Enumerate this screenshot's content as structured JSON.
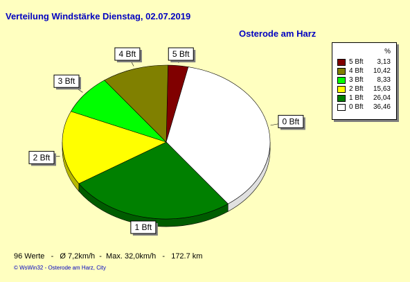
{
  "header": {
    "title": "Verteilung Windstärke  Dienstag, 02.07.2019",
    "location": "Osterode am Harz"
  },
  "legend": {
    "heading": "%",
    "entries": [
      {
        "label": "5 Bft",
        "value": "3,13"
      },
      {
        "label": "4 Bft",
        "value": "10,42"
      },
      {
        "label": "3 Bft",
        "value": "8,33"
      },
      {
        "label": "2 Bft",
        "value": "15,63"
      },
      {
        "label": "1 Bft",
        "value": "26,04"
      },
      {
        "label": "0 Bft",
        "value": "36,46"
      }
    ]
  },
  "stats": "96 Werte   -   Ø 7,2km/h  -  Max. 32,0km/h   -   172.7 km",
  "footer": "© WsWin32  -  Osterode am Harz, City",
  "chart_data": {
    "type": "pie",
    "title": "Verteilung Windstärke  Dienstag, 02.07.2019",
    "subtitle": "Osterode am Harz",
    "legend_position": "top-right",
    "unit": "%",
    "slices": [
      {
        "label": "5 Bft",
        "value": 3.13,
        "color": "#800000"
      },
      {
        "label": "0 Bft",
        "value": 36.46,
        "color": "#ffffff"
      },
      {
        "label": "1 Bft",
        "value": 26.04,
        "color": "#008000"
      },
      {
        "label": "2 Bft",
        "value": 15.63,
        "color": "#ffff00"
      },
      {
        "label": "3 Bft",
        "value": 8.33,
        "color": "#00ff00"
      },
      {
        "label": "4 Bft",
        "value": 10.42,
        "color": "#808000"
      }
    ]
  }
}
